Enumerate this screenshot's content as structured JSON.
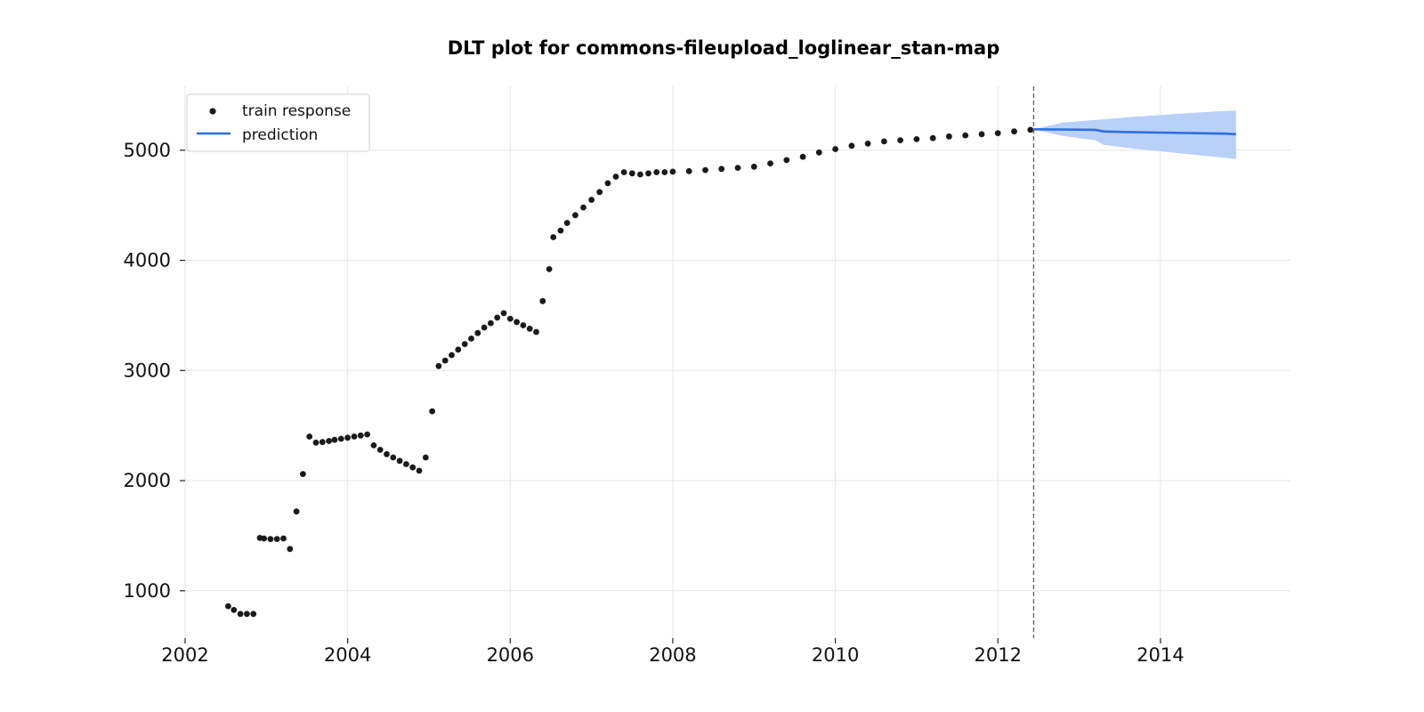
{
  "chart_data": {
    "type": "scatter",
    "title": "DLT plot for commons-fileupload_loglinear_stan-map",
    "xlabel": "",
    "ylabel": "",
    "x_ticks": [
      "2002",
      "2004",
      "2006",
      "2008",
      "2010",
      "2012",
      "2014"
    ],
    "y_ticks": [
      "1000",
      "2000",
      "3000",
      "4000",
      "5000"
    ],
    "xlim": [
      2002.0,
      2015.6
    ],
    "ylim": [
      570,
      5580
    ],
    "grid": true,
    "legend": {
      "position": "top-left",
      "entries": [
        "train response",
        "prediction"
      ]
    },
    "colors": {
      "train": "#1a1a1a",
      "prediction": "#2a6fdb",
      "band": "#b9d0f7",
      "cutoff": "#666666"
    },
    "train_cutoff": 2012.44,
    "series": [
      {
        "name": "train response",
        "kind": "scatter",
        "x": [
          2002.53,
          2002.6,
          2002.68,
          2002.76,
          2002.84,
          2002.92,
          2002.97,
          2003.05,
          2003.13,
          2003.21,
          2003.29,
          2003.37,
          2003.45,
          2003.53,
          2003.61,
          2003.69,
          2003.77,
          2003.84,
          2003.92,
          2004.0,
          2004.08,
          2004.16,
          2004.24,
          2004.32,
          2004.4,
          2004.48,
          2004.56,
          2004.64,
          2004.72,
          2004.8,
          2004.88,
          2004.96,
          2005.04,
          2005.12,
          2005.2,
          2005.28,
          2005.36,
          2005.44,
          2005.52,
          2005.6,
          2005.68,
          2005.76,
          2005.84,
          2005.92,
          2006.0,
          2006.08,
          2006.16,
          2006.24,
          2006.32,
          2006.4,
          2006.48,
          2006.53,
          2006.62,
          2006.7,
          2006.8,
          2006.9,
          2007.0,
          2007.1,
          2007.2,
          2007.3,
          2007.4,
          2007.5,
          2007.6,
          2007.7,
          2007.8,
          2007.9,
          2008.0,
          2008.2,
          2008.4,
          2008.6,
          2008.8,
          2009.0,
          2009.2,
          2009.4,
          2009.6,
          2009.8,
          2010.0,
          2010.2,
          2010.4,
          2010.6,
          2010.8,
          2011.0,
          2011.2,
          2011.4,
          2011.6,
          2011.8,
          2012.0,
          2012.2,
          2012.4
        ],
        "y": [
          860,
          825,
          790,
          790,
          790,
          1480,
          1475,
          1470,
          1470,
          1475,
          1380,
          1720,
          2060,
          2400,
          2345,
          2350,
          2360,
          2370,
          2380,
          2390,
          2400,
          2410,
          2420,
          2320,
          2280,
          2240,
          2210,
          2180,
          2150,
          2120,
          2090,
          2210,
          2630,
          3040,
          3090,
          3140,
          3190,
          3240,
          3290,
          3340,
          3390,
          3430,
          3480,
          3520,
          3470,
          3440,
          3410,
          3380,
          3350,
          3630,
          3920,
          4210,
          4270,
          4340,
          4410,
          4480,
          4550,
          4620,
          4700,
          4760,
          4800,
          4790,
          4780,
          4790,
          4800,
          4800,
          4805,
          4810,
          4820,
          4830,
          4840,
          4850,
          4880,
          4910,
          4940,
          4980,
          5010,
          5040,
          5060,
          5080,
          5090,
          5100,
          5110,
          5125,
          5135,
          5145,
          5155,
          5170,
          5185
        ]
      },
      {
        "name": "prediction",
        "kind": "line",
        "x": [
          2012.44,
          2012.8,
          2013.2,
          2013.3,
          2013.6,
          2014.0,
          2014.4,
          2014.8,
          2014.93
        ],
        "y": [
          5190,
          5188,
          5185,
          5170,
          5165,
          5160,
          5155,
          5150,
          5145
        ],
        "lower": [
          5190,
          5130,
          5090,
          5050,
          5020,
          4990,
          4960,
          4930,
          4920
        ],
        "upper": [
          5190,
          5250,
          5275,
          5280,
          5300,
          5320,
          5340,
          5355,
          5360
        ]
      }
    ]
  }
}
